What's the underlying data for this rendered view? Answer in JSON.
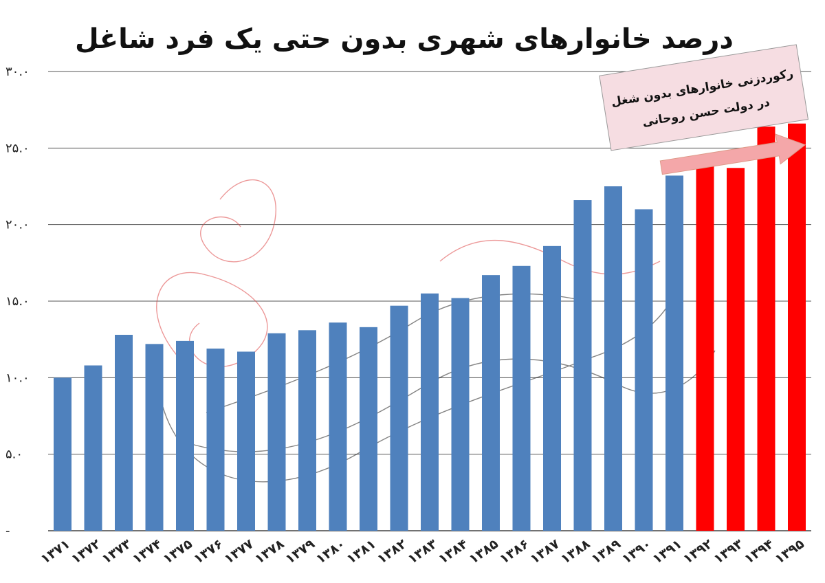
{
  "chart_data": {
    "type": "bar",
    "title": "درصد خانوارهای شهری بدون حتی یک فرد شاغل",
    "xlabel": "",
    "ylabel": "",
    "ylim": [
      0,
      30
    ],
    "yticks": [
      {
        "value": 0,
        "label": "-"
      },
      {
        "value": 5,
        "label": "۵.۰"
      },
      {
        "value": 10,
        "label": "۱۰.۰"
      },
      {
        "value": 15,
        "label": "۱۵.۰"
      },
      {
        "value": 20,
        "label": "۲۰.۰"
      },
      {
        "value": 25,
        "label": "۲۵.۰"
      },
      {
        "value": 30,
        "label": "۳۰.۰"
      }
    ],
    "grid": true,
    "categories": [
      "۱۳۷۱",
      "۱۳۷۲",
      "۱۳۷۳",
      "۱۳۷۴",
      "۱۳۷۵",
      "۱۳۷۶",
      "۱۳۷۷",
      "۱۳۷۸",
      "۱۳۷۹",
      "۱۳۸۰",
      "۱۳۸۱",
      "۱۳۸۲",
      "۱۳۸۳",
      "۱۳۸۴",
      "۱۳۸۵",
      "۱۳۸۶",
      "۱۳۸۷",
      "۱۳۸۸",
      "۱۳۸۹",
      "۱۳۹۰",
      "۱۳۹۱",
      "۱۳۹۲",
      "۱۳۹۳",
      "۱۳۹۴",
      "۱۳۹۵"
    ],
    "values": [
      10.0,
      10.8,
      12.8,
      12.2,
      12.4,
      11.9,
      11.7,
      12.9,
      13.1,
      13.6,
      13.3,
      14.7,
      15.5,
      15.2,
      16.7,
      17.3,
      18.6,
      21.6,
      22.5,
      21.0,
      23.2,
      24.0,
      23.7,
      26.4,
      26.6
    ],
    "colors": {
      "blue": "#4f81bd",
      "red": "#ff0000"
    },
    "highlight_from_index": 21,
    "annotation": {
      "lines": [
        "رکوردزنی خانوارهای بدون شغل",
        "در دولت حسن روحانی"
      ],
      "box_color": "#f6dde2",
      "arrow_color": "#f4a7a9"
    }
  }
}
